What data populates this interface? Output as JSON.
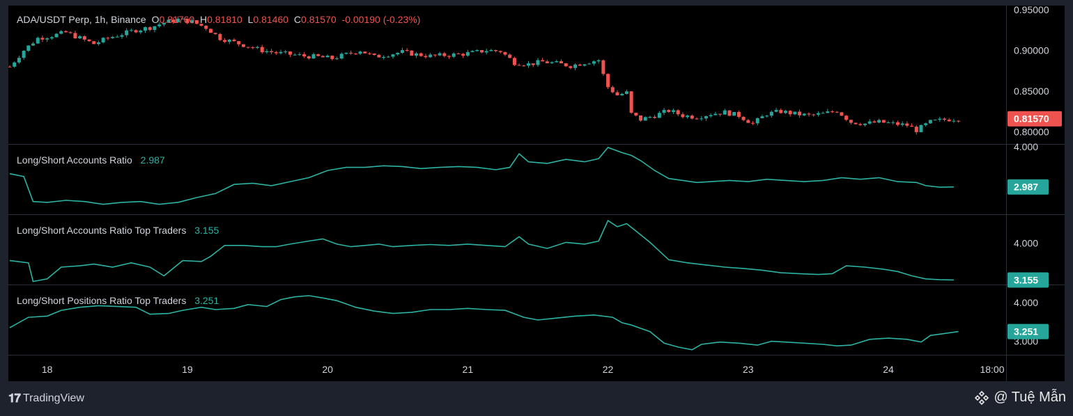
{
  "header": {
    "symbol": "ADA/USDT Perp, 1h, Binance",
    "open_label": "O",
    "open": "0.81760",
    "high_label": "H",
    "high": "0.81810",
    "low_label": "L",
    "low": "0.81460",
    "close_label": "C",
    "close": "0.81570",
    "change": "-0.00190 (-0.23%)"
  },
  "colors": {
    "up": "#26a69a",
    "down": "#ef5350",
    "line": "#2bb3a3",
    "background": "#000000",
    "frame": "#1e222d",
    "text": "#d1d4dc"
  },
  "footer": {
    "brand": "TradingView",
    "credit": "@ Tuệ Mẫn"
  },
  "x_axis": {
    "ticks": [
      "18",
      "19",
      "20",
      "21",
      "22",
      "23",
      "24",
      "18:00"
    ]
  },
  "chart_data": [
    {
      "name": "price",
      "type": "candlestick",
      "ylim": [
        0.785,
        0.955
      ],
      "y_ticks": [
        "0.95000",
        "0.90000",
        "0.85000",
        "0.80000"
      ],
      "last_value_label": "0.81570",
      "x_ticks": [
        "18",
        "19",
        "20",
        "21",
        "22",
        "23",
        "24",
        "18:00"
      ],
      "series_path": [
        [
          0,
          0.88
        ],
        [
          3,
          0.9
        ],
        [
          6,
          0.915
        ],
        [
          9,
          0.918
        ],
        [
          12,
          0.922
        ],
        [
          15,
          0.915
        ],
        [
          18,
          0.908
        ],
        [
          21,
          0.915
        ],
        [
          24,
          0.92
        ],
        [
          27,
          0.925
        ],
        [
          30,
          0.928
        ],
        [
          33,
          0.934
        ],
        [
          36,
          0.938
        ],
        [
          39,
          0.935
        ],
        [
          42,
          0.928
        ],
        [
          45,
          0.915
        ],
        [
          48,
          0.91
        ],
        [
          51,
          0.905
        ],
        [
          54,
          0.9
        ],
        [
          57,
          0.897
        ],
        [
          60,
          0.895
        ],
        [
          63,
          0.893
        ],
        [
          66,
          0.892
        ],
        [
          69,
          0.89
        ],
        [
          72,
          0.895
        ],
        [
          75,
          0.9
        ],
        [
          78,
          0.892
        ],
        [
          81,
          0.895
        ],
        [
          84,
          0.898
        ],
        [
          87,
          0.895
        ],
        [
          90,
          0.893
        ],
        [
          93,
          0.894
        ],
        [
          96,
          0.895
        ],
        [
          99,
          0.897
        ],
        [
          102,
          0.9
        ],
        [
          105,
          0.899
        ],
        [
          108,
          0.885
        ],
        [
          111,
          0.883
        ],
        [
          114,
          0.886
        ],
        [
          117,
          0.884
        ],
        [
          120,
          0.881
        ],
        [
          123,
          0.885
        ],
        [
          126,
          0.888
        ],
        [
          127,
          0.87
        ],
        [
          128,
          0.855
        ],
        [
          130,
          0.845
        ],
        [
          132,
          0.848
        ],
        [
          133,
          0.822
        ],
        [
          135,
          0.815
        ],
        [
          138,
          0.82
        ],
        [
          141,
          0.826
        ],
        [
          144,
          0.82
        ],
        [
          147,
          0.818
        ],
        [
          150,
          0.822
        ],
        [
          153,
          0.824
        ],
        [
          156,
          0.82
        ],
        [
          159,
          0.81
        ],
        [
          162,
          0.822
        ],
        [
          165,
          0.825
        ],
        [
          168,
          0.822
        ],
        [
          171,
          0.82
        ],
        [
          174,
          0.822
        ],
        [
          177,
          0.826
        ],
        [
          180,
          0.812
        ],
        [
          183,
          0.81
        ],
        [
          186,
          0.812
        ],
        [
          189,
          0.81
        ],
        [
          192,
          0.808
        ],
        [
          194,
          0.802
        ],
        [
          197,
          0.812
        ],
        [
          200,
          0.815
        ],
        [
          203,
          0.816
        ]
      ]
    },
    {
      "name": "long-short-accounts-ratio",
      "type": "line",
      "label": "Long/Short Accounts Ratio",
      "value_label": "2.987",
      "y_ticks": [
        "4.000"
      ],
      "ylim": [
        2.3,
        4.05
      ],
      "y_tick_values": [
        4.0
      ],
      "last_value": 2.987,
      "series": [
        [
          0,
          3.32
        ],
        [
          3,
          3.25
        ],
        [
          5,
          2.62
        ],
        [
          8,
          2.6
        ],
        [
          12,
          2.65
        ],
        [
          16,
          2.62
        ],
        [
          20,
          2.55
        ],
        [
          24,
          2.6
        ],
        [
          28,
          2.62
        ],
        [
          32,
          2.55
        ],
        [
          36,
          2.6
        ],
        [
          40,
          2.72
        ],
        [
          44,
          2.82
        ],
        [
          48,
          3.05
        ],
        [
          52,
          3.08
        ],
        [
          56,
          3.02
        ],
        [
          60,
          3.12
        ],
        [
          64,
          3.22
        ],
        [
          68,
          3.4
        ],
        [
          72,
          3.48
        ],
        [
          76,
          3.48
        ],
        [
          80,
          3.52
        ],
        [
          84,
          3.5
        ],
        [
          88,
          3.45
        ],
        [
          92,
          3.48
        ],
        [
          96,
          3.5
        ],
        [
          100,
          3.48
        ],
        [
          104,
          3.42
        ],
        [
          107,
          3.48
        ],
        [
          109,
          3.82
        ],
        [
          111,
          3.62
        ],
        [
          115,
          3.58
        ],
        [
          119,
          3.68
        ],
        [
          123,
          3.62
        ],
        [
          126,
          3.7
        ],
        [
          128,
          3.98
        ],
        [
          131,
          3.85
        ],
        [
          133,
          3.78
        ],
        [
          135,
          3.65
        ],
        [
          138,
          3.4
        ],
        [
          141,
          3.2
        ],
        [
          144,
          3.15
        ],
        [
          147,
          3.1
        ],
        [
          150,
          3.12
        ],
        [
          154,
          3.15
        ],
        [
          158,
          3.12
        ],
        [
          162,
          3.18
        ],
        [
          166,
          3.15
        ],
        [
          170,
          3.12
        ],
        [
          174,
          3.15
        ],
        [
          178,
          3.22
        ],
        [
          182,
          3.18
        ],
        [
          186,
          3.22
        ],
        [
          190,
          3.12
        ],
        [
          194,
          3.1
        ],
        [
          196,
          3.02
        ],
        [
          199,
          2.98
        ],
        [
          202,
          2.987
        ]
      ]
    },
    {
      "name": "long-short-accounts-ratio-top-traders",
      "type": "line",
      "label": "Long/Short Accounts Ratio Top Traders",
      "value_label": "3.155",
      "y_ticks": [
        "4.000"
      ],
      "ylim": [
        3.05,
        4.65
      ],
      "y_tick_values": [
        4.0
      ],
      "last_value": 3.155,
      "series": [
        [
          0,
          3.6
        ],
        [
          4,
          3.55
        ],
        [
          5,
          3.12
        ],
        [
          8,
          3.18
        ],
        [
          11,
          3.45
        ],
        [
          15,
          3.48
        ],
        [
          18,
          3.52
        ],
        [
          22,
          3.45
        ],
        [
          26,
          3.55
        ],
        [
          30,
          3.45
        ],
        [
          33,
          3.25
        ],
        [
          37,
          3.6
        ],
        [
          41,
          3.58
        ],
        [
          43,
          3.7
        ],
        [
          46,
          3.95
        ],
        [
          50,
          3.95
        ],
        [
          54,
          3.92
        ],
        [
          57,
          3.92
        ],
        [
          60,
          3.98
        ],
        [
          64,
          4.05
        ],
        [
          67,
          4.1
        ],
        [
          70,
          3.98
        ],
        [
          73,
          3.92
        ],
        [
          76,
          3.95
        ],
        [
          79,
          3.98
        ],
        [
          82,
          3.92
        ],
        [
          86,
          3.95
        ],
        [
          90,
          3.97
        ],
        [
          94,
          3.95
        ],
        [
          98,
          3.98
        ],
        [
          102,
          3.95
        ],
        [
          106,
          3.92
        ],
        [
          109,
          4.15
        ],
        [
          111,
          3.98
        ],
        [
          115,
          3.88
        ],
        [
          119,
          4.02
        ],
        [
          123,
          3.98
        ],
        [
          126,
          4.05
        ],
        [
          128,
          4.52
        ],
        [
          130,
          4.38
        ],
        [
          132,
          4.45
        ],
        [
          134,
          4.28
        ],
        [
          137,
          4.02
        ],
        [
          141,
          3.62
        ],
        [
          145,
          3.55
        ],
        [
          149,
          3.5
        ],
        [
          153,
          3.45
        ],
        [
          157,
          3.42
        ],
        [
          161,
          3.38
        ],
        [
          165,
          3.32
        ],
        [
          169,
          3.3
        ],
        [
          173,
          3.28
        ],
        [
          176,
          3.3
        ],
        [
          179,
          3.48
        ],
        [
          183,
          3.45
        ],
        [
          187,
          3.4
        ],
        [
          190,
          3.35
        ],
        [
          193,
          3.25
        ],
        [
          196,
          3.18
        ],
        [
          199,
          3.16
        ],
        [
          202,
          3.155
        ]
      ]
    },
    {
      "name": "long-short-positions-ratio-top-traders",
      "type": "line",
      "label": "Long/Short Positions Ratio Top Traders",
      "value_label": "3.251",
      "y_ticks": [
        "4.000",
        "3.000"
      ],
      "ylim": [
        2.65,
        4.45
      ],
      "y_tick_values": [
        4.0,
        3.0
      ],
      "last_value": 3.251,
      "series": [
        [
          0,
          3.35
        ],
        [
          4,
          3.62
        ],
        [
          8,
          3.65
        ],
        [
          11,
          3.8
        ],
        [
          15,
          3.88
        ],
        [
          19,
          3.92
        ],
        [
          23,
          3.9
        ],
        [
          27,
          3.88
        ],
        [
          30,
          3.7
        ],
        [
          34,
          3.72
        ],
        [
          37,
          3.8
        ],
        [
          41,
          3.88
        ],
        [
          44,
          3.82
        ],
        [
          48,
          3.85
        ],
        [
          51,
          3.95
        ],
        [
          55,
          3.9
        ],
        [
          58,
          4.08
        ],
        [
          61,
          4.15
        ],
        [
          64,
          4.18
        ],
        [
          67,
          4.12
        ],
        [
          70,
          4.05
        ],
        [
          74,
          3.88
        ],
        [
          78,
          3.78
        ],
        [
          82,
          3.72
        ],
        [
          86,
          3.75
        ],
        [
          90,
          3.82
        ],
        [
          94,
          3.82
        ],
        [
          98,
          3.85
        ],
        [
          102,
          3.82
        ],
        [
          106,
          3.8
        ],
        [
          110,
          3.62
        ],
        [
          113,
          3.55
        ],
        [
          117,
          3.6
        ],
        [
          121,
          3.65
        ],
        [
          125,
          3.68
        ],
        [
          129,
          3.62
        ],
        [
          131,
          3.48
        ],
        [
          133,
          3.42
        ],
        [
          137,
          3.25
        ],
        [
          140,
          2.95
        ],
        [
          143,
          2.85
        ],
        [
          146,
          2.78
        ],
        [
          148,
          2.92
        ],
        [
          152,
          2.98
        ],
        [
          156,
          2.95
        ],
        [
          160,
          2.9
        ],
        [
          163,
          3.0
        ],
        [
          166,
          2.98
        ],
        [
          170,
          2.95
        ],
        [
          174,
          2.92
        ],
        [
          177,
          2.88
        ],
        [
          180,
          2.9
        ],
        [
          184,
          3.05
        ],
        [
          188,
          3.08
        ],
        [
          192,
          3.05
        ],
        [
          195,
          2.98
        ],
        [
          197,
          3.15
        ],
        [
          200,
          3.2
        ],
        [
          203,
          3.251
        ]
      ]
    }
  ]
}
